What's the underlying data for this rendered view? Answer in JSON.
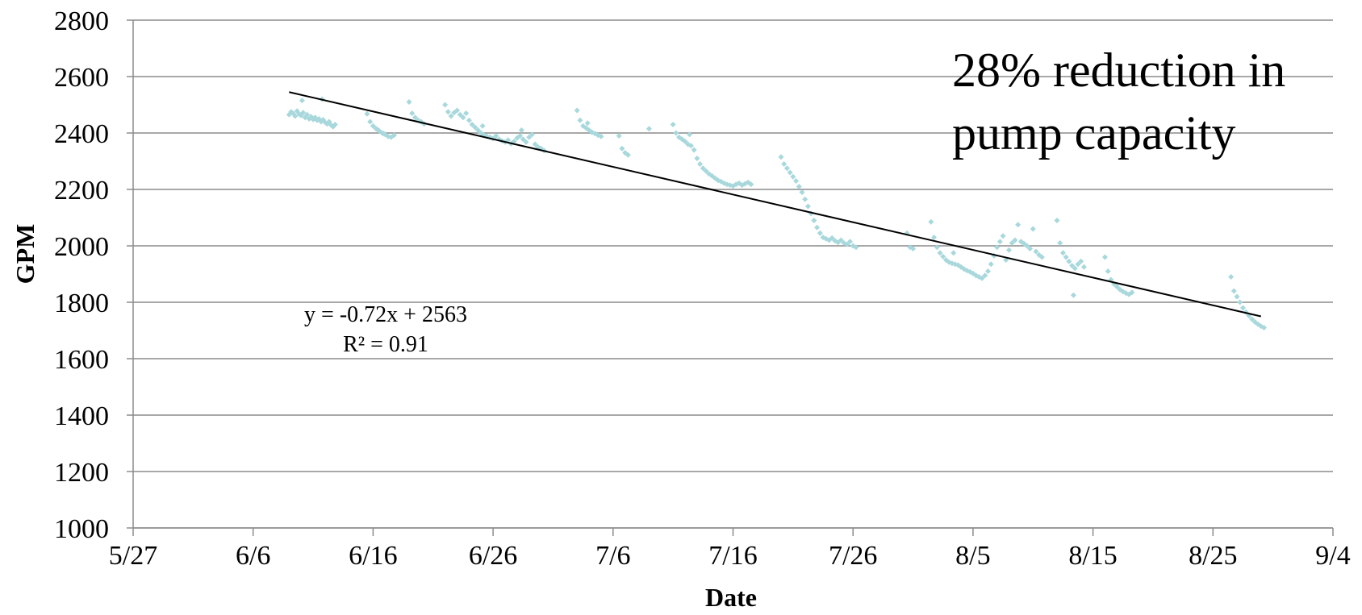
{
  "chart_data": {
    "type": "scatter",
    "title": "",
    "xlabel": "Date",
    "ylabel": "GPM",
    "x_type": "date",
    "xlim": [
      "2013-05-27",
      "2013-09-04"
    ],
    "ylim": [
      1000,
      2800
    ],
    "x_ticks": [
      "5/27",
      "6/6",
      "6/16",
      "6/26",
      "7/6",
      "7/16",
      "7/26",
      "8/5",
      "8/15",
      "8/25",
      "9/4"
    ],
    "y_ticks": [
      "1000",
      "1200",
      "1400",
      "1600",
      "1800",
      "2000",
      "2200",
      "2400",
      "2600",
      "2800"
    ],
    "grid": "horizontal",
    "legend": "none",
    "marker_color": "#A8D8DC",
    "series": [
      {
        "points": [
          [
            "2013-06-09T00:00",
            2465
          ],
          [
            "2013-06-09T04:00",
            2475
          ],
          [
            "2013-06-09T08:00",
            2470
          ],
          [
            "2013-06-09T12:00",
            2460
          ],
          [
            "2013-06-09T16:00",
            2478
          ],
          [
            "2013-06-09T20:00",
            2467
          ],
          [
            "2013-06-10T00:00",
            2462
          ],
          [
            "2013-06-10T04:00",
            2472
          ],
          [
            "2013-06-10T08:00",
            2455
          ],
          [
            "2013-06-10T12:00",
            2465
          ],
          [
            "2013-06-10T16:00",
            2450
          ],
          [
            "2013-06-10T20:00",
            2458
          ],
          [
            "2013-06-11T00:00",
            2448
          ],
          [
            "2013-06-11T04:00",
            2455
          ],
          [
            "2013-06-11T08:00",
            2445
          ],
          [
            "2013-06-11T12:00",
            2450
          ],
          [
            "2013-06-11T16:00",
            2440
          ],
          [
            "2013-06-11T20:00",
            2447
          ],
          [
            "2013-06-12T00:00",
            2438
          ],
          [
            "2013-06-12T04:00",
            2432
          ],
          [
            "2013-06-12T08:00",
            2440
          ],
          [
            "2013-06-12T12:00",
            2428
          ],
          [
            "2013-06-12T16:00",
            2422
          ],
          [
            "2013-06-12T20:00",
            2430
          ],
          [
            "2013-06-10T02:00",
            2515
          ],
          [
            "2013-06-11T18:00",
            2520
          ],
          [
            "2013-06-15T12:00",
            2468
          ],
          [
            "2013-06-15T18:00",
            2440
          ],
          [
            "2013-06-16T00:00",
            2425
          ],
          [
            "2013-06-16T06:00",
            2415
          ],
          [
            "2013-06-16T12:00",
            2408
          ],
          [
            "2013-06-16T18:00",
            2400
          ],
          [
            "2013-06-17T00:00",
            2395
          ],
          [
            "2013-06-17T06:00",
            2388
          ],
          [
            "2013-06-17T12:00",
            2385
          ],
          [
            "2013-06-17T18:00",
            2392
          ],
          [
            "2013-06-16T09:00",
            2412
          ],
          [
            "2013-06-16T21:00",
            2398
          ],
          [
            "2013-06-19T00:00",
            2510
          ],
          [
            "2013-06-19T06:00",
            2470
          ],
          [
            "2013-06-19T12:00",
            2455
          ],
          [
            "2013-06-19T18:00",
            2445
          ],
          [
            "2013-06-20T00:00",
            2440
          ],
          [
            "2013-06-20T06:00",
            2432
          ],
          [
            "2013-06-22T00:00",
            2500
          ],
          [
            "2013-06-22T06:00",
            2475
          ],
          [
            "2013-06-22T12:00",
            2460
          ],
          [
            "2013-06-22T18:00",
            2472
          ],
          [
            "2013-06-23T00:00",
            2480
          ],
          [
            "2013-06-23T06:00",
            2465
          ],
          [
            "2013-06-23T12:00",
            2455
          ],
          [
            "2013-06-23T18:00",
            2470
          ],
          [
            "2013-06-24T00:00",
            2445
          ],
          [
            "2013-06-24T06:00",
            2430
          ],
          [
            "2013-06-24T12:00",
            2420
          ],
          [
            "2013-06-24T18:00",
            2410
          ],
          [
            "2013-06-25T00:00",
            2400
          ],
          [
            "2013-06-25T06:00",
            2392
          ],
          [
            "2013-06-25T12:00",
            2388
          ],
          [
            "2013-06-25T18:00",
            2385
          ],
          [
            "2013-06-26T00:00",
            2380
          ],
          [
            "2013-06-26T06:00",
            2390
          ],
          [
            "2013-06-26T12:00",
            2378
          ],
          [
            "2013-06-26T18:00",
            2372
          ],
          [
            "2013-06-27T00:00",
            2368
          ],
          [
            "2013-06-27T06:00",
            2375
          ],
          [
            "2013-06-27T12:00",
            2362
          ],
          [
            "2013-06-27T18:00",
            2370
          ],
          [
            "2013-06-28T00:00",
            2382
          ],
          [
            "2013-06-28T06:00",
            2390
          ],
          [
            "2013-06-28T12:00",
            2378
          ],
          [
            "2013-06-28T18:00",
            2368
          ],
          [
            "2013-06-29T00:00",
            2385
          ],
          [
            "2013-06-29T06:00",
            2395
          ],
          [
            "2013-06-29T12:00",
            2360
          ],
          [
            "2013-06-29T18:00",
            2350
          ],
          [
            "2013-06-30T00:00",
            2345
          ],
          [
            "2013-06-30T06:00",
            2338
          ],
          [
            "2013-06-25T03:00",
            2425
          ],
          [
            "2013-06-28T09:00",
            2410
          ],
          [
            "2013-07-03T00:00",
            2480
          ],
          [
            "2013-07-03T06:00",
            2445
          ],
          [
            "2013-07-03T12:00",
            2425
          ],
          [
            "2013-07-03T18:00",
            2418
          ],
          [
            "2013-07-04T00:00",
            2410
          ],
          [
            "2013-07-04T06:00",
            2402
          ],
          [
            "2013-07-04T12:00",
            2398
          ],
          [
            "2013-07-04T18:00",
            2392
          ],
          [
            "2013-07-05T00:00",
            2388
          ],
          [
            "2013-07-03T21:00",
            2435
          ],
          [
            "2013-07-06T12:00",
            2390
          ],
          [
            "2013-07-06T18:00",
            2345
          ],
          [
            "2013-07-07T00:00",
            2330
          ],
          [
            "2013-07-07T06:00",
            2322
          ],
          [
            "2013-07-09T00:00",
            2415
          ],
          [
            "2013-07-11T00:00",
            2430
          ],
          [
            "2013-07-11T06:00",
            2400
          ],
          [
            "2013-07-11T12:00",
            2385
          ],
          [
            "2013-07-11T18:00",
            2378
          ],
          [
            "2013-07-12T00:00",
            2370
          ],
          [
            "2013-07-12T06:00",
            2360
          ],
          [
            "2013-07-12T12:00",
            2355
          ],
          [
            "2013-07-12T18:00",
            2340
          ],
          [
            "2013-07-13T00:00",
            2310
          ],
          [
            "2013-07-13T06:00",
            2290
          ],
          [
            "2013-07-13T12:00",
            2275
          ],
          [
            "2013-07-13T18:00",
            2265
          ],
          [
            "2013-07-14T00:00",
            2255
          ],
          [
            "2013-07-14T06:00",
            2248
          ],
          [
            "2013-07-14T12:00",
            2240
          ],
          [
            "2013-07-14T18:00",
            2232
          ],
          [
            "2013-07-15T00:00",
            2228
          ],
          [
            "2013-07-15T06:00",
            2222
          ],
          [
            "2013-07-15T12:00",
            2218
          ],
          [
            "2013-07-15T18:00",
            2215
          ],
          [
            "2013-07-16T00:00",
            2212
          ],
          [
            "2013-07-16T06:00",
            2218
          ],
          [
            "2013-07-16T12:00",
            2222
          ],
          [
            "2013-07-16T18:00",
            2215
          ],
          [
            "2013-07-17T00:00",
            2220
          ],
          [
            "2013-07-17T06:00",
            2225
          ],
          [
            "2013-07-17T12:00",
            2218
          ],
          [
            "2013-07-12T09:00",
            2395
          ],
          [
            "2013-07-20T00:00",
            2315
          ],
          [
            "2013-07-20T06:00",
            2290
          ],
          [
            "2013-07-20T12:00",
            2275
          ],
          [
            "2013-07-20T18:00",
            2260
          ],
          [
            "2013-07-21T00:00",
            2245
          ],
          [
            "2013-07-21T06:00",
            2230
          ],
          [
            "2013-07-21T12:00",
            2210
          ],
          [
            "2013-07-21T18:00",
            2190
          ],
          [
            "2013-07-22T00:00",
            2165
          ],
          [
            "2013-07-22T06:00",
            2140
          ],
          [
            "2013-07-22T12:00",
            2115
          ],
          [
            "2013-07-22T18:00",
            2090
          ],
          [
            "2013-07-23T00:00",
            2065
          ],
          [
            "2013-07-23T06:00",
            2045
          ],
          [
            "2013-07-23T12:00",
            2030
          ],
          [
            "2013-07-23T18:00",
            2025
          ],
          [
            "2013-07-24T00:00",
            2020
          ],
          [
            "2013-07-24T06:00",
            2028
          ],
          [
            "2013-07-24T12:00",
            2018
          ],
          [
            "2013-07-24T18:00",
            2012
          ],
          [
            "2013-07-25T00:00",
            2020
          ],
          [
            "2013-07-25T06:00",
            2010
          ],
          [
            "2013-07-25T12:00",
            2005
          ],
          [
            "2013-07-25T18:00",
            2015
          ],
          [
            "2013-07-26T00:00",
            2000
          ],
          [
            "2013-07-26T06:00",
            1995
          ],
          [
            "2013-07-30T12:00",
            2045
          ],
          [
            "2013-07-30T18:00",
            1995
          ],
          [
            "2013-07-31T00:00",
            1990
          ],
          [
            "2013-08-01T12:00",
            2085
          ],
          [
            "2013-08-01T18:00",
            2030
          ],
          [
            "2013-08-02T00:00",
            1995
          ],
          [
            "2013-08-02T06:00",
            1975
          ],
          [
            "2013-08-02T12:00",
            1962
          ],
          [
            "2013-08-02T18:00",
            1950
          ],
          [
            "2013-08-03T00:00",
            1942
          ],
          [
            "2013-08-03T06:00",
            1938
          ],
          [
            "2013-08-03T12:00",
            1935
          ],
          [
            "2013-08-03T18:00",
            1932
          ],
          [
            "2013-08-04T00:00",
            1925
          ],
          [
            "2013-08-04T06:00",
            1918
          ],
          [
            "2013-08-04T12:00",
            1912
          ],
          [
            "2013-08-04T18:00",
            1908
          ],
          [
            "2013-08-05T00:00",
            1902
          ],
          [
            "2013-08-05T06:00",
            1895
          ],
          [
            "2013-08-05T12:00",
            1890
          ],
          [
            "2013-08-05T18:00",
            1885
          ],
          [
            "2013-08-06T00:00",
            1895
          ],
          [
            "2013-08-06T06:00",
            1910
          ],
          [
            "2013-08-06T12:00",
            1935
          ],
          [
            "2013-08-06T18:00",
            1965
          ],
          [
            "2013-08-07T00:00",
            1995
          ],
          [
            "2013-08-07T06:00",
            2015
          ],
          [
            "2013-08-07T12:00",
            2035
          ],
          [
            "2013-08-03T09:00",
            1975
          ],
          [
            "2013-08-07T18:00",
            1950
          ],
          [
            "2013-08-08T00:00",
            1985
          ],
          [
            "2013-08-08T06:00",
            2010
          ],
          [
            "2013-08-08T12:00",
            2020
          ],
          [
            "2013-08-08T18:00",
            2075
          ],
          [
            "2013-08-09T00:00",
            2015
          ],
          [
            "2013-08-09T06:00",
            2008
          ],
          [
            "2013-08-09T12:00",
            2000
          ],
          [
            "2013-08-09T18:00",
            1990
          ],
          [
            "2013-08-10T00:00",
            2060
          ],
          [
            "2013-08-10T06:00",
            1980
          ],
          [
            "2013-08-10T12:00",
            1968
          ],
          [
            "2013-08-10T18:00",
            1960
          ],
          [
            "2013-08-12T00:00",
            2090
          ],
          [
            "2013-08-12T06:00",
            2010
          ],
          [
            "2013-08-12T12:00",
            1975
          ],
          [
            "2013-08-12T18:00",
            1960
          ],
          [
            "2013-08-13T00:00",
            1945
          ],
          [
            "2013-08-13T06:00",
            1930
          ],
          [
            "2013-08-13T12:00",
            1920
          ],
          [
            "2013-08-13T18:00",
            1935
          ],
          [
            "2013-08-14T00:00",
            1945
          ],
          [
            "2013-08-14T06:00",
            1925
          ],
          [
            "2013-08-13T09:00",
            1825
          ],
          [
            "2013-08-16T00:00",
            1960
          ],
          [
            "2013-08-16T06:00",
            1910
          ],
          [
            "2013-08-16T12:00",
            1880
          ],
          [
            "2013-08-16T18:00",
            1865
          ],
          [
            "2013-08-17T00:00",
            1855
          ],
          [
            "2013-08-17T06:00",
            1845
          ],
          [
            "2013-08-17T12:00",
            1838
          ],
          [
            "2013-08-17T18:00",
            1832
          ],
          [
            "2013-08-18T00:00",
            1828
          ],
          [
            "2013-08-18T06:00",
            1835
          ],
          [
            "2013-08-26T12:00",
            1890
          ],
          [
            "2013-08-26T18:00",
            1840
          ],
          [
            "2013-08-27T00:00",
            1820
          ],
          [
            "2013-08-27T06:00",
            1800
          ],
          [
            "2013-08-27T12:00",
            1780
          ],
          [
            "2013-08-27T18:00",
            1765
          ],
          [
            "2013-08-28T00:00",
            1752
          ],
          [
            "2013-08-28T06:00",
            1740
          ],
          [
            "2013-08-28T12:00",
            1730
          ],
          [
            "2013-08-28T18:00",
            1722
          ],
          [
            "2013-08-29T00:00",
            1715
          ],
          [
            "2013-08-29T06:00",
            1710
          ]
        ]
      }
    ],
    "trendline": {
      "type": "linear",
      "x_range": [
        "2013-06-09",
        "2013-08-29"
      ],
      "y_range": [
        2545,
        1750
      ],
      "equation": "y = -0.72x + 2563",
      "r_squared": "R² = 0.91",
      "color": "#000000"
    },
    "annotations": [
      {
        "text": "28% reduction in",
        "role": "callout-line-1"
      },
      {
        "text": "pump capacity",
        "role": "callout-line-2"
      }
    ]
  }
}
